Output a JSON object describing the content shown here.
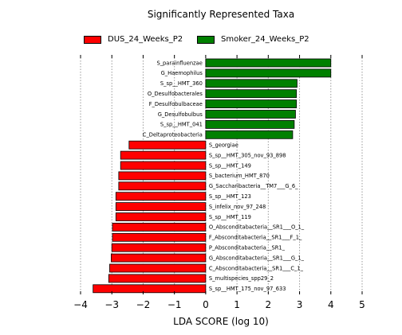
{
  "chart_data": {
    "type": "bar",
    "orientation": "horizontal",
    "title": "Significantly Represented Taxa",
    "xlabel": "LDA SCORE (log 10)",
    "ylabel": "",
    "xlim": [
      -4,
      5
    ],
    "xticks": [
      -4,
      -3,
      -2,
      -1,
      0,
      1,
      2,
      3,
      4,
      5
    ],
    "xtick_labels": [
      "−4",
      "−3",
      "−2",
      "−1",
      "0",
      "1",
      "2",
      "3",
      "4",
      "5"
    ],
    "grid": "vertical dotted",
    "legend_position": "top",
    "series": [
      {
        "name": "DUS_24_Weeks_P2",
        "color": "#ff0000"
      },
      {
        "name": "Smoker_24_Weeks_P2",
        "color": "#008000"
      }
    ],
    "bars": [
      {
        "label": "S_parainfluenzae",
        "value": 4.0,
        "series": "Smoker_24_Weeks_P2"
      },
      {
        "label": "G_Haemophilus",
        "value": 4.0,
        "series": "Smoker_24_Weeks_P2"
      },
      {
        "label": "S_sp__HMT_360",
        "value": 2.92,
        "series": "Smoker_24_Weeks_P2"
      },
      {
        "label": "O_Desulfobacterales",
        "value": 2.9,
        "series": "Smoker_24_Weeks_P2"
      },
      {
        "label": "F_Desulfobulbaceae",
        "value": 2.9,
        "series": "Smoker_24_Weeks_P2"
      },
      {
        "label": "G_Desulfobulbus",
        "value": 2.87,
        "series": "Smoker_24_Weeks_P2"
      },
      {
        "label": "S_sp__HMT_041",
        "value": 2.83,
        "series": "Smoker_24_Weeks_P2"
      },
      {
        "label": "C_Deltaproteobacteria",
        "value": 2.78,
        "series": "Smoker_24_Weeks_P2"
      },
      {
        "label": "S_georgiae",
        "value": -2.45,
        "series": "DUS_24_Weeks_P2"
      },
      {
        "label": "S_sp__HMT_305_nov_93_898",
        "value": -2.72,
        "series": "DUS_24_Weeks_P2"
      },
      {
        "label": "S_sp__HMT_149",
        "value": -2.72,
        "series": "DUS_24_Weeks_P2"
      },
      {
        "label": "S_bacterium_HMT_870",
        "value": -2.78,
        "series": "DUS_24_Weeks_P2"
      },
      {
        "label": "G_Saccharibacteria__TM7___G_6_",
        "value": -2.78,
        "series": "DUS_24_Weeks_P2"
      },
      {
        "label": "S_sp__HMT_123",
        "value": -2.87,
        "series": "DUS_24_Weeks_P2"
      },
      {
        "label": "S_infelix_nov_97_248",
        "value": -2.87,
        "series": "DUS_24_Weeks_P2"
      },
      {
        "label": "S_sp__HMT_119",
        "value": -2.87,
        "series": "DUS_24_Weeks_P2"
      },
      {
        "label": "O_Absconditabacteria__SR1___O_1_",
        "value": -2.98,
        "series": "DUS_24_Weeks_P2"
      },
      {
        "label": "F_Absconditabacteria__SR1___F_1_",
        "value": -2.98,
        "series": "DUS_24_Weeks_P2"
      },
      {
        "label": "P_Absconditabacteria__SR1_",
        "value": -3.0,
        "series": "DUS_24_Weeks_P2"
      },
      {
        "label": "G_Absconditabacteria__SR1___G_1_",
        "value": -3.02,
        "series": "DUS_24_Weeks_P2"
      },
      {
        "label": "C_Absconditabacteria__SR1___C_1_",
        "value": -3.07,
        "series": "DUS_24_Weeks_P2"
      },
      {
        "label": "S_multispecies_spp29_2",
        "value": -3.1,
        "series": "DUS_24_Weeks_P2"
      },
      {
        "label": "S_sp__HMT_175_nov_97_633",
        "value": -3.6,
        "series": "DUS_24_Weeks_P2"
      }
    ]
  }
}
